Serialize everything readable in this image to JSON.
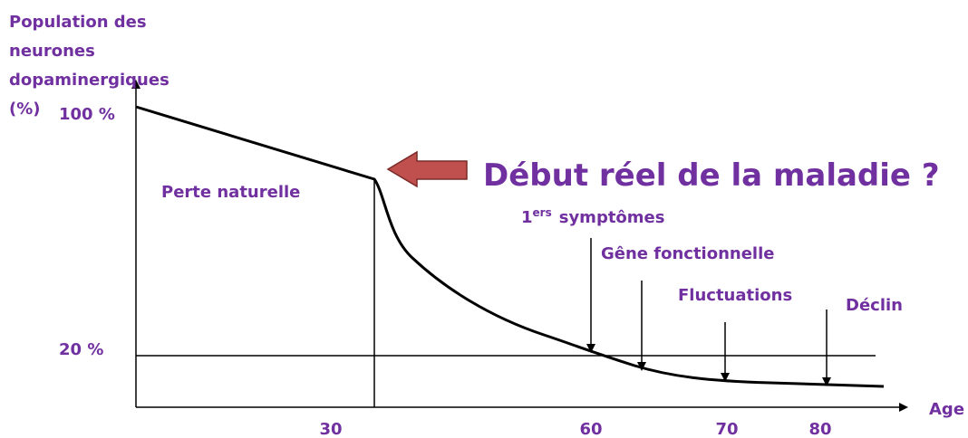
{
  "axes": {
    "y_label": [
      "Population des",
      "neurones",
      "dopaminergiques",
      "(%)"
    ],
    "y_ticks": [
      "100 %",
      "20 %"
    ],
    "x_ticks": [
      "30",
      "60",
      "70",
      "80"
    ],
    "x_label": "Age"
  },
  "annotations": {
    "natural_loss": "Perte naturelle",
    "onset": "Début réel de la maladie ?",
    "first_symptoms": {
      "number": "1",
      "suffix": "ers",
      "text": "symptômes"
    },
    "functional_impairment": "Gêne fonctionnelle",
    "fluctuations": "Fluctuations",
    "decline": "Déclin"
  }
}
